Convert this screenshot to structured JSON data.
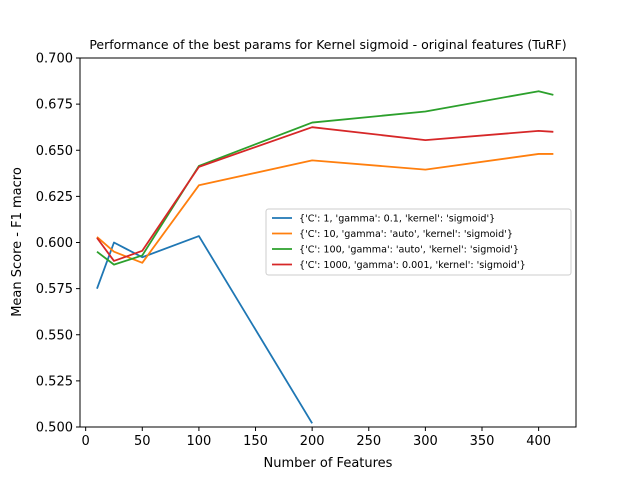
{
  "chart_data": {
    "type": "line",
    "title": "Performance of the best params for Kernel sigmoid -  original features (TuRF)",
    "xlabel": "Number of Features",
    "ylabel": "Mean Score - F1 macro",
    "xlim": [
      -5,
      433
    ],
    "ylim": [
      0.5,
      0.7
    ],
    "xticks": [
      0,
      50,
      100,
      150,
      200,
      250,
      300,
      350,
      400
    ],
    "yticks": [
      0.5,
      0.525,
      0.55,
      0.575,
      0.6,
      0.625,
      0.65,
      0.675,
      0.7
    ],
    "xtick_labels": [
      "0",
      "50",
      "100",
      "150",
      "200",
      "250",
      "300",
      "350",
      "400"
    ],
    "ytick_labels": [
      "0.500",
      "0.525",
      "0.550",
      "0.575",
      "0.600",
      "0.625",
      "0.650",
      "0.675",
      "0.700"
    ],
    "grid": false,
    "legend_position": "center-right",
    "series": [
      {
        "name": "{'C': 1, 'gamma': 0.1, 'kernel': 'sigmoid'}",
        "color": "#1f77b4",
        "x": [
          10,
          25,
          50,
          100,
          200
        ],
        "y": [
          0.575,
          0.6,
          0.592,
          0.6035,
          0.502
        ]
      },
      {
        "name": "{'C': 10, 'gamma': 'auto', 'kernel': 'sigmoid'}",
        "color": "#ff7f0e",
        "x": [
          10,
          25,
          50,
          100,
          200,
          300,
          400,
          413
        ],
        "y": [
          0.603,
          0.595,
          0.589,
          0.631,
          0.6445,
          0.6395,
          0.648,
          0.648
        ]
      },
      {
        "name": "{'C': 100, 'gamma': 'auto', 'kernel': 'sigmoid'}",
        "color": "#2ca02c",
        "x": [
          10,
          25,
          50,
          100,
          200,
          300,
          400,
          413
        ],
        "y": [
          0.595,
          0.588,
          0.593,
          0.6415,
          0.665,
          0.671,
          0.682,
          0.68
        ]
      },
      {
        "name": "{'C': 1000, 'gamma': 0.001, 'kernel': 'sigmoid'}",
        "color": "#d62728",
        "x": [
          10,
          25,
          50,
          100,
          200,
          300,
          400,
          413
        ],
        "y": [
          0.6025,
          0.59,
          0.5955,
          0.641,
          0.6625,
          0.6555,
          0.6605,
          0.66
        ]
      }
    ]
  }
}
